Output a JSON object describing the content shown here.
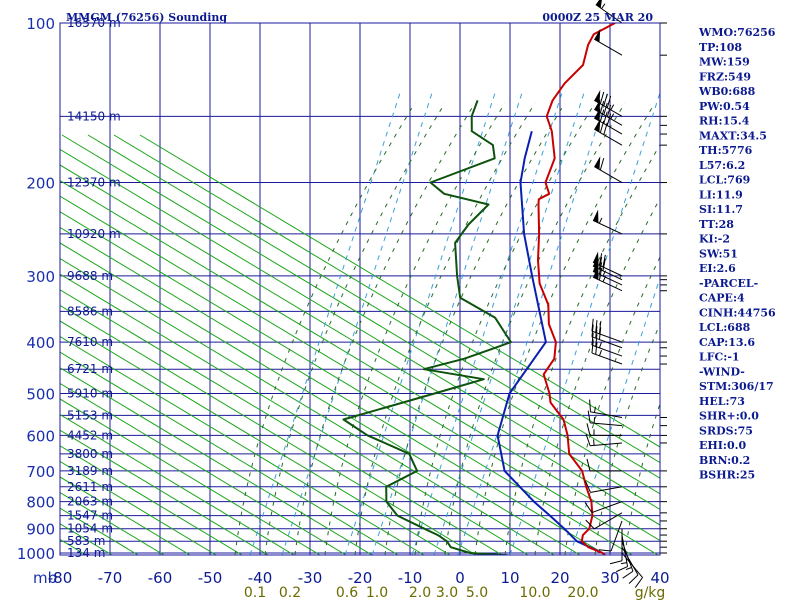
{
  "header": {
    "station": "MMGM (76256) Sounding",
    "time": "0000Z 25 MAR 20"
  },
  "chart_data": {
    "type": "skew-t",
    "pressure_levels": [
      100,
      200,
      300,
      400,
      500,
      600,
      700,
      800,
      900,
      1000
    ],
    "pressure_labels": [
      "100",
      "200",
      "300",
      "400",
      "500",
      "600",
      "700",
      "800",
      "900",
      "1000"
    ],
    "pressure_unit": "mb",
    "temperature_ticks": [
      -80,
      -70,
      -60,
      -50,
      -40,
      -30,
      -20,
      -10,
      0,
      10,
      20,
      30,
      40
    ],
    "temperature_tick_labels": [
      "-80",
      "-70",
      "-60",
      "-50",
      "-40",
      "-30",
      "-20",
      "-10",
      "0",
      "10",
      "20",
      "30",
      "40"
    ],
    "mixing_ratio_labels": [
      "0.1",
      "0.2",
      "0.6",
      "1.0",
      "2.0",
      "3.0",
      "5.0",
      "10.0",
      "20.0",
      "g/kg"
    ],
    "mixing_ratio_values": [
      0.1,
      0.2,
      0.6,
      1.0,
      2.0,
      3.0,
      5.0,
      10.0,
      20.0
    ],
    "height_labels": [
      {
        "p": 100,
        "label": "16570 m"
      },
      {
        "p": 150,
        "label": "14150 m"
      },
      {
        "p": 200,
        "label": "12370 m"
      },
      {
        "p": 250,
        "label": "10920 m"
      },
      {
        "p": 300,
        "label": "9688 m"
      },
      {
        "p": 350,
        "label": "8586 m"
      },
      {
        "p": 400,
        "label": "7610 m"
      },
      {
        "p": 450,
        "label": "6721 m"
      },
      {
        "p": 500,
        "label": "5910 m"
      },
      {
        "p": 550,
        "label": "5153 m"
      },
      {
        "p": 600,
        "label": "4452 m"
      },
      {
        "p": 650,
        "label": "3800 m"
      },
      {
        "p": 700,
        "label": "3189 m"
      },
      {
        "p": 750,
        "label": "2611 m"
      },
      {
        "p": 800,
        "label": "2063 m"
      },
      {
        "p": 850,
        "label": "1547 m"
      },
      {
        "p": 900,
        "label": "1054 m"
      },
      {
        "p": 950,
        "label": "583 m"
      },
      {
        "p": 1000,
        "label": "134 m"
      }
    ],
    "temperature_profile": [
      [
        1010,
        29.5
      ],
      [
        1000,
        28.5
      ],
      [
        975,
        24.5
      ],
      [
        950,
        22
      ],
      [
        925,
        21
      ],
      [
        900,
        21
      ],
      [
        850,
        19
      ],
      [
        800,
        16
      ],
      [
        750,
        12
      ],
      [
        700,
        8
      ],
      [
        650,
        2
      ],
      [
        600,
        -2
      ],
      [
        560,
        -6
      ],
      [
        520,
        -12
      ],
      [
        500,
        -14
      ],
      [
        460,
        -19
      ],
      [
        430,
        -20
      ],
      [
        400,
        -23
      ],
      [
        370,
        -28
      ],
      [
        340,
        -32
      ],
      [
        310,
        -38
      ],
      [
        280,
        -43
      ],
      [
        250,
        -48
      ],
      [
        220,
        -54
      ],
      [
        215,
        -55
      ],
      [
        210,
        -54
      ],
      [
        200,
        -57
      ],
      [
        180,
        -60
      ],
      [
        160,
        -66
      ],
      [
        150,
        -70
      ],
      [
        140,
        -72
      ],
      [
        130,
        -73
      ],
      [
        120,
        -73
      ],
      [
        110,
        -76
      ],
      [
        105,
        -77
      ],
      [
        100,
        -75
      ]
    ],
    "dewpoint_profile": [
      [
        1010,
        10
      ],
      [
        1000,
        2
      ],
      [
        975,
        -3
      ],
      [
        950,
        -5
      ],
      [
        925,
        -8
      ],
      [
        900,
        -12
      ],
      [
        850,
        -20
      ],
      [
        800,
        -25
      ],
      [
        750,
        -28
      ],
      [
        700,
        -25
      ],
      [
        650,
        -30
      ],
      [
        600,
        -42
      ],
      [
        560,
        -50
      ],
      [
        500,
        -37
      ],
      [
        470,
        -30
      ],
      [
        450,
        -44
      ],
      [
        430,
        -38
      ],
      [
        410,
        -34
      ],
      [
        400,
        -32
      ],
      [
        360,
        -40
      ],
      [
        330,
        -51
      ],
      [
        300,
        -56
      ],
      [
        260,
        -63
      ],
      [
        240,
        -64
      ],
      [
        220,
        -64
      ],
      [
        210,
        -75
      ],
      [
        200,
        -80
      ],
      [
        180,
        -72
      ],
      [
        170,
        -75
      ],
      [
        160,
        -82
      ],
      [
        150,
        -85
      ],
      [
        140,
        -87
      ]
    ],
    "parcel_profile": [
      [
        1000,
        28.5
      ],
      [
        950,
        21
      ],
      [
        900,
        16
      ],
      [
        850,
        10.5
      ],
      [
        800,
        4.5
      ],
      [
        700,
        -7.5
      ],
      [
        600,
        -16
      ],
      [
        500,
        -22
      ],
      [
        400,
        -25
      ],
      [
        300,
        -41
      ],
      [
        250,
        -51
      ],
      [
        200,
        -62
      ],
      [
        180,
        -66
      ],
      [
        160,
        -70
      ]
    ],
    "wind_barbs": [
      {
        "p": 100,
        "dir": 305,
        "speed": 55
      },
      {
        "p": 115,
        "dir": 300,
        "speed": 50
      },
      {
        "p": 150,
        "dir": 300,
        "speed": 85
      },
      {
        "p": 156,
        "dir": 300,
        "speed": 85
      },
      {
        "p": 162,
        "dir": 300,
        "speed": 80
      },
      {
        "p": 170,
        "dir": 300,
        "speed": 70
      },
      {
        "p": 200,
        "dir": 300,
        "speed": 60
      },
      {
        "p": 250,
        "dir": 295,
        "speed": 55
      },
      {
        "p": 300,
        "dir": 295,
        "speed": 70
      },
      {
        "p": 305,
        "dir": 295,
        "speed": 70
      },
      {
        "p": 312,
        "dir": 295,
        "speed": 65
      },
      {
        "p": 320,
        "dir": 295,
        "speed": 65
      },
      {
        "p": 400,
        "dir": 290,
        "speed": 30
      },
      {
        "p": 410,
        "dir": 290,
        "speed": 30
      },
      {
        "p": 425,
        "dir": 290,
        "speed": 25
      },
      {
        "p": 440,
        "dir": 290,
        "speed": 25
      },
      {
        "p": 555,
        "dir": 280,
        "speed": 15
      },
      {
        "p": 575,
        "dir": 275,
        "speed": 15
      },
      {
        "p": 600,
        "dir": 270,
        "speed": 15
      },
      {
        "p": 620,
        "dir": 265,
        "speed": 15
      },
      {
        "p": 700,
        "dir": 270,
        "speed": 10
      },
      {
        "p": 750,
        "dir": 260,
        "speed": 10
      },
      {
        "p": 800,
        "dir": 250,
        "speed": 10
      },
      {
        "p": 840,
        "dir": 240,
        "speed": 10
      },
      {
        "p": 870,
        "dir": 200,
        "speed": 10
      },
      {
        "p": 900,
        "dir": 180,
        "speed": 10
      },
      {
        "p": 925,
        "dir": 170,
        "speed": 15
      },
      {
        "p": 950,
        "dir": 160,
        "speed": 15
      },
      {
        "p": 975,
        "dir": 150,
        "speed": 10
      },
      {
        "p": 1000,
        "dir": 140,
        "speed": 10
      }
    ],
    "colors": {
      "isobar": "#1a1a9c",
      "isotherm": "#1a1a9c",
      "dry_adiabat": "#1aa61a",
      "moist_adiabat": "#2a6a2a",
      "mixing_ratio": "#3aa0d8",
      "temperature": "#c80000",
      "dewpoint": "#0d520d",
      "parcel": "#0a1fb0",
      "wind_barb": "#000000"
    }
  },
  "indices": [
    "WMO:76256",
    "TP:108",
    "MW:159",
    "FRZ:549",
    "WB0:688",
    "PW:0.54",
    "RH:15.4",
    "MAXT:34.5",
    "TH:5776",
    "L57:6.2",
    "LCL:769",
    "LI:11.9",
    "SI:11.7",
    "TT:28",
    "KI:-2",
    "SW:51",
    "EI:2.6",
    "-PARCEL-",
    "CAPE:4",
    "CINH:44756",
    "LCL:688",
    "CAP:13.6",
    "LFC:-1",
    "-WIND-",
    "STM:306/17",
    "HEL:73",
    "SHR+:0.0",
    "SRDS:75",
    "EHI:0.0",
    "BRN:0.2",
    "BSHR:25"
  ]
}
